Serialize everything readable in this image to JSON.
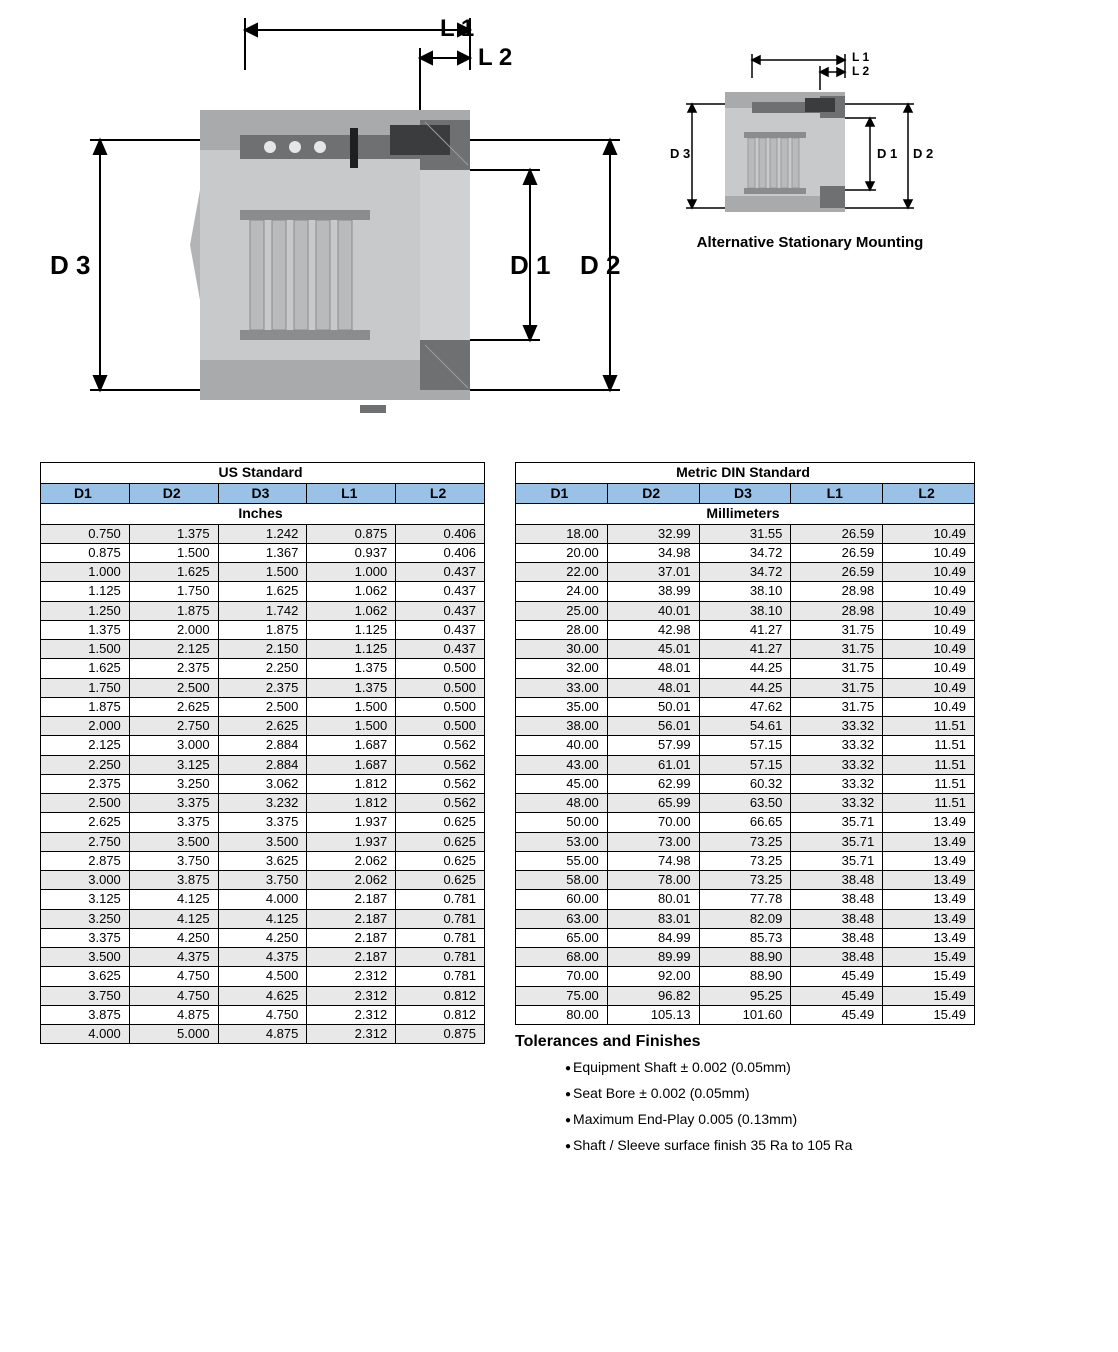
{
  "diagram": {
    "labels": {
      "L1": "L 1",
      "L2": "L 2",
      "D1": "D 1",
      "D2": "D 2",
      "D3": "D 3"
    },
    "alt_labels": {
      "L1": "L 1",
      "L2": "L 2",
      "D1": "D 1",
      "D2": "D 2",
      "D3": "D 3"
    },
    "alt_caption": "Alternative Stationary Mounting",
    "colors": {
      "body_light": "#c7c9ca",
      "body_mid": "#a8aaab",
      "body_dark": "#6e7072",
      "accent": "#3a3c3e",
      "bg": "#ffffff",
      "dim_line": "#000000"
    }
  },
  "tables": {
    "us": {
      "title": "US Standard",
      "units": "Inches",
      "columns": [
        "D1",
        "D2",
        "D3",
        "L1",
        "L2"
      ],
      "rows": [
        [
          "0.750",
          "1.375",
          "1.242",
          "0.875",
          "0.406"
        ],
        [
          "0.875",
          "1.500",
          "1.367",
          "0.937",
          "0.406"
        ],
        [
          "1.000",
          "1.625",
          "1.500",
          "1.000",
          "0.437"
        ],
        [
          "1.125",
          "1.750",
          "1.625",
          "1.062",
          "0.437"
        ],
        [
          "1.250",
          "1.875",
          "1.742",
          "1.062",
          "0.437"
        ],
        [
          "1.375",
          "2.000",
          "1.875",
          "1.125",
          "0.437"
        ],
        [
          "1.500",
          "2.125",
          "2.150",
          "1.125",
          "0.437"
        ],
        [
          "1.625",
          "2.375",
          "2.250",
          "1.375",
          "0.500"
        ],
        [
          "1.750",
          "2.500",
          "2.375",
          "1.375",
          "0.500"
        ],
        [
          "1.875",
          "2.625",
          "2.500",
          "1.500",
          "0.500"
        ],
        [
          "2.000",
          "2.750",
          "2.625",
          "1.500",
          "0.500"
        ],
        [
          "2.125",
          "3.000",
          "2.884",
          "1.687",
          "0.562"
        ],
        [
          "2.250",
          "3.125",
          "2.884",
          "1.687",
          "0.562"
        ],
        [
          "2.375",
          "3.250",
          "3.062",
          "1.812",
          "0.562"
        ],
        [
          "2.500",
          "3.375",
          "3.232",
          "1.812",
          "0.562"
        ],
        [
          "2.625",
          "3.375",
          "3.375",
          "1.937",
          "0.625"
        ],
        [
          "2.750",
          "3.500",
          "3.500",
          "1.937",
          "0.625"
        ],
        [
          "2.875",
          "3.750",
          "3.625",
          "2.062",
          "0.625"
        ],
        [
          "3.000",
          "3.875",
          "3.750",
          "2.062",
          "0.625"
        ],
        [
          "3.125",
          "4.125",
          "4.000",
          "2.187",
          "0.781"
        ],
        [
          "3.250",
          "4.125",
          "4.125",
          "2.187",
          "0.781"
        ],
        [
          "3.375",
          "4.250",
          "4.250",
          "2.187",
          "0.781"
        ],
        [
          "3.500",
          "4.375",
          "4.375",
          "2.187",
          "0.781"
        ],
        [
          "3.625",
          "4.750",
          "4.500",
          "2.312",
          "0.781"
        ],
        [
          "3.750",
          "4.750",
          "4.625",
          "2.312",
          "0.812"
        ],
        [
          "3.875",
          "4.875",
          "4.750",
          "2.312",
          "0.812"
        ],
        [
          "4.000",
          "5.000",
          "4.875",
          "2.312",
          "0.875"
        ]
      ]
    },
    "metric": {
      "title": "Metric DIN Standard",
      "units": "Millimeters",
      "columns": [
        "D1",
        "D2",
        "D3",
        "L1",
        "L2"
      ],
      "rows": [
        [
          "18.00",
          "32.99",
          "31.55",
          "26.59",
          "10.49"
        ],
        [
          "20.00",
          "34.98",
          "34.72",
          "26.59",
          "10.49"
        ],
        [
          "22.00",
          "37.01",
          "34.72",
          "26.59",
          "10.49"
        ],
        [
          "24.00",
          "38.99",
          "38.10",
          "28.98",
          "10.49"
        ],
        [
          "25.00",
          "40.01",
          "38.10",
          "28.98",
          "10.49"
        ],
        [
          "28.00",
          "42.98",
          "41.27",
          "31.75",
          "10.49"
        ],
        [
          "30.00",
          "45.01",
          "41.27",
          "31.75",
          "10.49"
        ],
        [
          "32.00",
          "48.01",
          "44.25",
          "31.75",
          "10.49"
        ],
        [
          "33.00",
          "48.01",
          "44.25",
          "31.75",
          "10.49"
        ],
        [
          "35.00",
          "50.01",
          "47.62",
          "31.75",
          "10.49"
        ],
        [
          "38.00",
          "56.01",
          "54.61",
          "33.32",
          "11.51"
        ],
        [
          "40.00",
          "57.99",
          "57.15",
          "33.32",
          "11.51"
        ],
        [
          "43.00",
          "61.01",
          "57.15",
          "33.32",
          "11.51"
        ],
        [
          "45.00",
          "62.99",
          "60.32",
          "33.32",
          "11.51"
        ],
        [
          "48.00",
          "65.99",
          "63.50",
          "33.32",
          "11.51"
        ],
        [
          "50.00",
          "70.00",
          "66.65",
          "35.71",
          "13.49"
        ],
        [
          "53.00",
          "73.00",
          "73.25",
          "35.71",
          "13.49"
        ],
        [
          "55.00",
          "74.98",
          "73.25",
          "35.71",
          "13.49"
        ],
        [
          "58.00",
          "78.00",
          "73.25",
          "38.48",
          "13.49"
        ],
        [
          "60.00",
          "80.01",
          "77.78",
          "38.48",
          "13.49"
        ],
        [
          "63.00",
          "83.01",
          "82.09",
          "38.48",
          "13.49"
        ],
        [
          "65.00",
          "84.99",
          "85.73",
          "38.48",
          "13.49"
        ],
        [
          "68.00",
          "89.99",
          "88.90",
          "38.48",
          "15.49"
        ],
        [
          "70.00",
          "92.00",
          "88.90",
          "45.49",
          "15.49"
        ],
        [
          "75.00",
          "96.82",
          "95.25",
          "45.49",
          "15.49"
        ],
        [
          "80.00",
          "105.13",
          "101.60",
          "45.49",
          "15.49"
        ]
      ]
    }
  },
  "tolerances": {
    "title": "Tolerances and Finishes",
    "items": [
      "Equipment Shaft ± 0.002 (0.05mm)",
      "Seat Bore ± 0.002 (0.05mm)",
      "Maximum End-Play 0.005 (0.13mm)",
      "Shaft / Sleeve surface finish 35 Ra to 105 Ra"
    ]
  },
  "table_style": {
    "header_bg": "#99c2e6",
    "alt_row_bg": "#e8e8e8",
    "row_bg": "#ffffff",
    "border": "#000000",
    "fontsize": 13
  }
}
